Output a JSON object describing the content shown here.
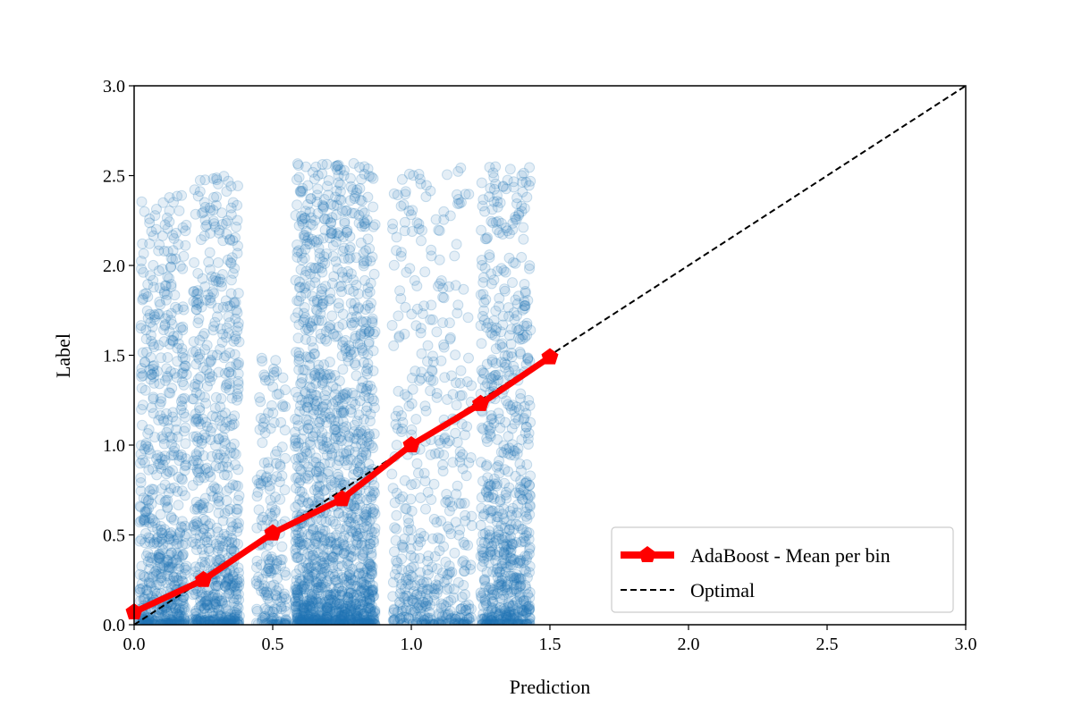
{
  "chart_data": {
    "type": "scatter",
    "xlabel": "Prediction",
    "ylabel": "Label",
    "xlim": [
      0.0,
      3.0
    ],
    "ylim": [
      0.0,
      3.0
    ],
    "xticks": [
      "0.0",
      "0.5",
      "1.0",
      "1.5",
      "2.0",
      "2.5",
      "3.0"
    ],
    "yticks": [
      "0.0",
      "0.5",
      "1.0",
      "1.5",
      "2.0",
      "2.5",
      "3.0"
    ],
    "grid": false,
    "legend_position": "lower-right",
    "scatter_color": "#1f77b4",
    "scatter_alpha": 0.12,
    "scatter_clusters": [
      {
        "x_min": 0.02,
        "x_max": 0.19,
        "y_max": 2.4,
        "count": 650
      },
      {
        "x_min": 0.21,
        "x_max": 0.38,
        "y_max": 2.5,
        "count": 650
      },
      {
        "x_min": 0.44,
        "x_max": 0.55,
        "y_max": 1.5,
        "count": 200
      },
      {
        "x_min": 0.58,
        "x_max": 0.87,
        "y_max": 2.57,
        "count": 1500
      },
      {
        "x_min": 0.93,
        "x_max": 1.22,
        "y_max": 2.57,
        "count": 500
      },
      {
        "x_min": 1.25,
        "x_max": 1.43,
        "y_max": 2.55,
        "count": 700
      }
    ],
    "series": [
      {
        "name": "AdaBoost - Mean per bin",
        "type": "line",
        "color": "#ff0000",
        "marker": "pentagon",
        "x": [
          0.0,
          0.25,
          0.5,
          0.75,
          1.0,
          1.25,
          1.5
        ],
        "y": [
          0.07,
          0.25,
          0.51,
          0.7,
          1.0,
          1.23,
          1.49
        ]
      },
      {
        "name": "Optimal",
        "type": "line",
        "color": "#000000",
        "dash": true,
        "x": [
          0.0,
          3.0
        ],
        "y": [
          0.0,
          3.0
        ]
      }
    ]
  }
}
